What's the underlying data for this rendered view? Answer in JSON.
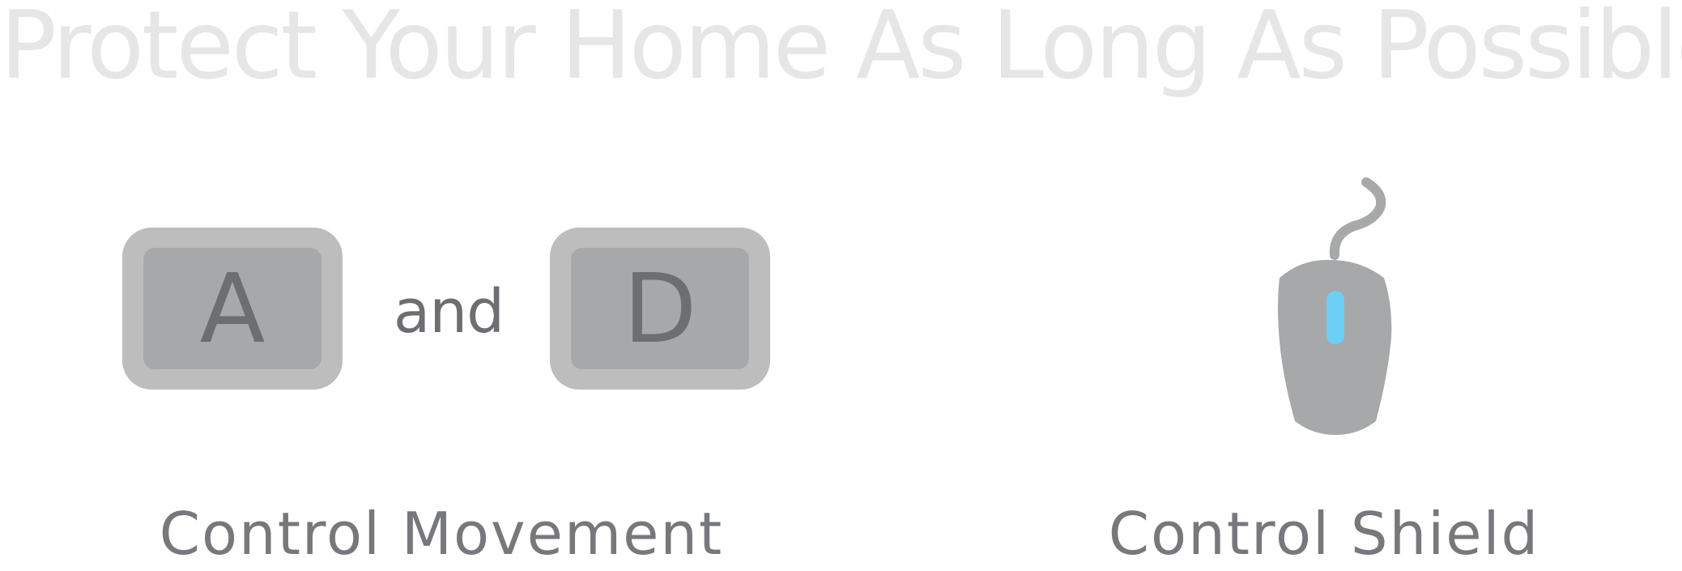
{
  "title": "Protect Your Home As Long As Possible!",
  "movement": {
    "key_left": "A",
    "connector": "and",
    "key_right": "D",
    "caption": "Control Movement"
  },
  "shield": {
    "icon": "mouse-icon",
    "caption": "Control Shield"
  },
  "colors": {
    "title": "#e6e6e7",
    "key_outer": "#bdbdbe",
    "key_inner": "#a7a8aa",
    "key_letter": "#6d6e71",
    "mouse_body": "#a7a8aa",
    "mouse_wheel": "#6ccff6",
    "caption": "#77787b"
  }
}
